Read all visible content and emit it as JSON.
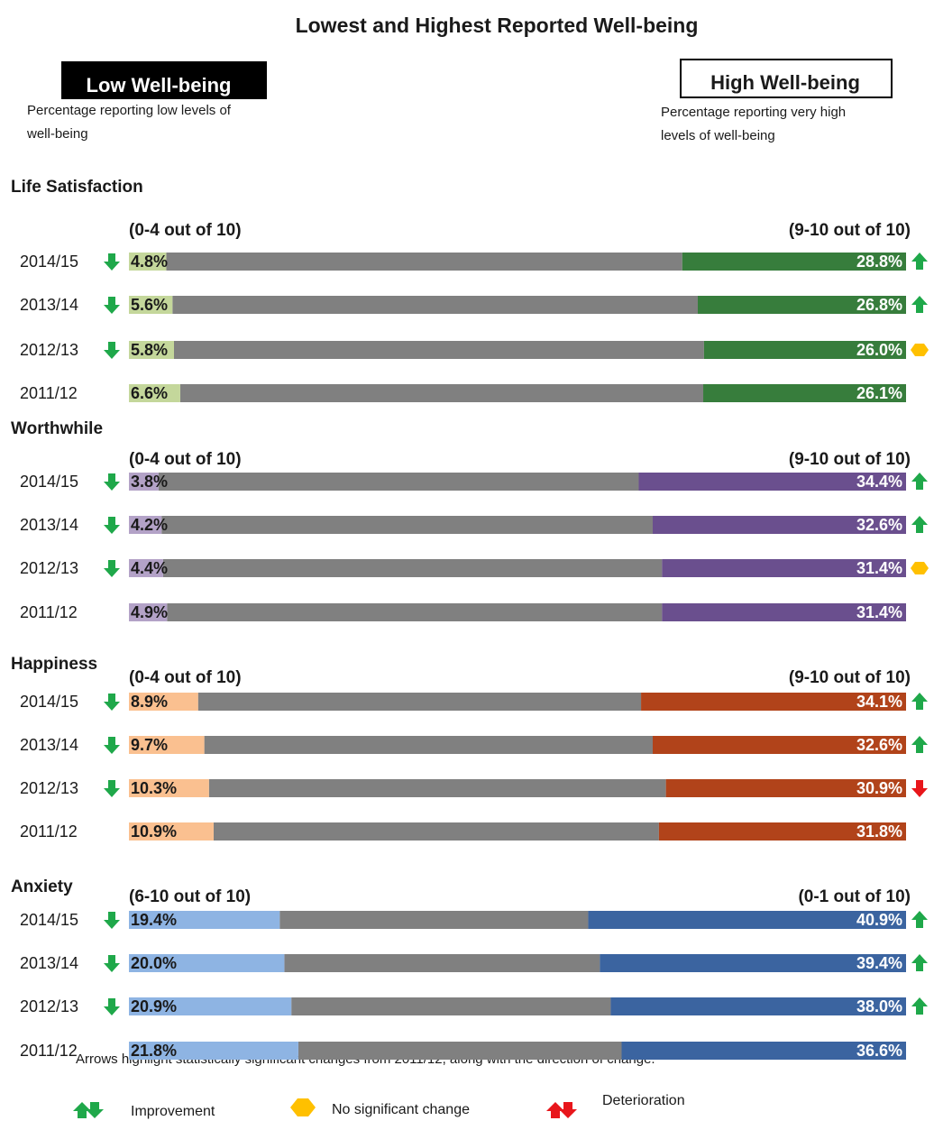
{
  "title": "Lowest and Highest Reported Well-being",
  "low_header": {
    "title": "Low Well-being",
    "description": [
      "Percentage reporting low levels of",
      "well-being"
    ]
  },
  "high_header": {
    "title": "High Well-being",
    "description": [
      "Percentage reporting very high",
      "levels of well-being"
    ]
  },
  "chart_data": [
    {
      "type": "stacked-bar",
      "title": "Life Satisfaction",
      "categories": [
        "2014/15",
        "2013/14",
        "2012/13",
        "2011/12"
      ],
      "xlim": [
        0,
        100
      ],
      "series": [
        {
          "name": "(0-4 out of 10)",
          "color": "#c4d79b",
          "values": [
            4.8,
            5.6,
            5.8,
            6.6
          ],
          "value_labels": [
            "4.8%",
            "5.6%",
            "5.8%",
            "6.6%"
          ],
          "change": [
            "improvement",
            "improvement",
            "improvement",
            null
          ]
        },
        {
          "name": "(9-10 out of 10)",
          "color": "#377d3c",
          "values": [
            28.8,
            26.8,
            26.0,
            26.1
          ],
          "value_labels": [
            "28.8%",
            "26.8%",
            "26.0%",
            "26.1%"
          ],
          "change": [
            "improvement",
            "improvement",
            "no-change",
            null
          ]
        }
      ]
    },
    {
      "type": "stacked-bar",
      "title": "Worthwhile",
      "categories": [
        "2014/15",
        "2013/14",
        "2012/13",
        "2011/12"
      ],
      "xlim": [
        0,
        100
      ],
      "series": [
        {
          "name": "(0-4 out of 10)",
          "color": "#b3a2c7",
          "values": [
            3.8,
            4.2,
            4.4,
            4.9
          ],
          "value_labels": [
            "3.8%",
            "4.2%",
            "4.4%",
            "4.9%"
          ],
          "change": [
            "improvement",
            "improvement",
            "improvement",
            null
          ]
        },
        {
          "name": "(9-10 out of 10)",
          "color": "#6a4f8e",
          "values": [
            34.4,
            32.6,
            31.4,
            31.4
          ],
          "value_labels": [
            "34.4%",
            "32.6%",
            "31.4%",
            "31.4%"
          ],
          "change": [
            "improvement",
            "improvement",
            "no-change",
            null
          ]
        }
      ]
    },
    {
      "type": "stacked-bar",
      "title": "Happiness",
      "categories": [
        "2014/15",
        "2013/14",
        "2012/13",
        "2011/12"
      ],
      "xlim": [
        0,
        100
      ],
      "series": [
        {
          "name": "(0-4 out of 10)",
          "color": "#fac090",
          "values": [
            8.9,
            9.7,
            10.3,
            10.9
          ],
          "value_labels": [
            "8.9%",
            "9.7%",
            "10.3%",
            "10.9%"
          ],
          "change": [
            "improvement",
            "improvement",
            "improvement",
            null
          ]
        },
        {
          "name": "(9-10 out of 10)",
          "color": "#b1431a",
          "values": [
            34.1,
            32.6,
            30.9,
            31.8
          ],
          "value_labels": [
            "34.1%",
            "32.6%",
            "30.9%",
            "31.8%"
          ],
          "change": [
            "improvement",
            "improvement",
            "deterioration",
            null
          ]
        }
      ]
    },
    {
      "type": "stacked-bar",
      "title": "Anxiety",
      "categories": [
        "2014/15",
        "2013/14",
        "2012/13",
        "2011/12"
      ],
      "xlim": [
        0,
        100
      ],
      "series": [
        {
          "name": "(6-10 out of 10)",
          "color": "#8eb4e3",
          "values": [
            19.4,
            20.0,
            20.9,
            21.8
          ],
          "value_labels": [
            "19.4%",
            "20.0%",
            "20.9%",
            "21.8%"
          ],
          "change": [
            "improvement",
            "improvement",
            "improvement",
            null
          ]
        },
        {
          "name": "(0-1 out of 10)",
          "color": "#3b64a0",
          "values": [
            40.9,
            39.4,
            38.0,
            36.6
          ],
          "value_labels": [
            "40.9%",
            "39.4%",
            "38.0%",
            "36.6%"
          ],
          "change": [
            "improvement",
            "improvement",
            "improvement",
            null
          ]
        }
      ]
    }
  ],
  "note": "Arrows highlight statistically significant changes from 2011/12, along with the direction of change.",
  "legend": [
    "Improvement",
    "No significant change",
    "Deterioration"
  ]
}
